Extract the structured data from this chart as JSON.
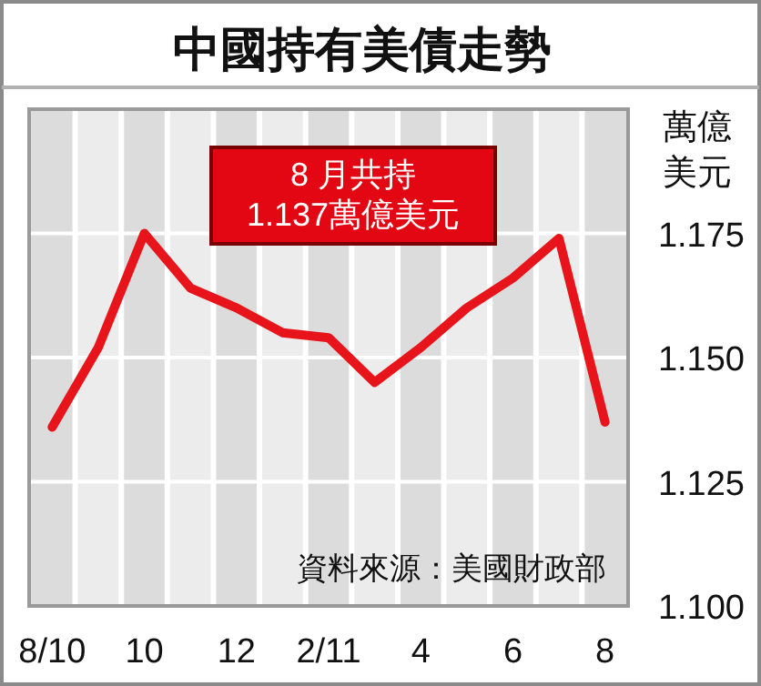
{
  "chart_data": {
    "type": "line",
    "title": "中國持有美債走勢",
    "ylabel": "萬億美元",
    "categories": [
      "8/10",
      null,
      "10",
      null,
      "12",
      null,
      "2/11",
      null,
      "4",
      null,
      "6",
      null,
      "8"
    ],
    "series": [
      {
        "color": "#e8141b",
        "values": [
          1.136,
          1.152,
          1.175,
          1.164,
          1.16,
          1.155,
          1.154,
          1.145,
          1.152,
          1.16,
          1.166,
          1.174,
          1.137
        ]
      }
    ],
    "ylim": [
      1.1,
      1.2
    ],
    "yticks": [
      {
        "value": 1.1,
        "label": "1.100"
      },
      {
        "value": 1.125,
        "label": "1.125"
      },
      {
        "value": 1.15,
        "label": "1.150"
      },
      {
        "value": 1.175,
        "label": "1.175"
      }
    ],
    "annotations": [
      "8 月共持\n1.137萬億美元",
      "資料來源：美國財政部"
    ],
    "grid": true,
    "marker": "none",
    "line_style": "solid"
  }
}
